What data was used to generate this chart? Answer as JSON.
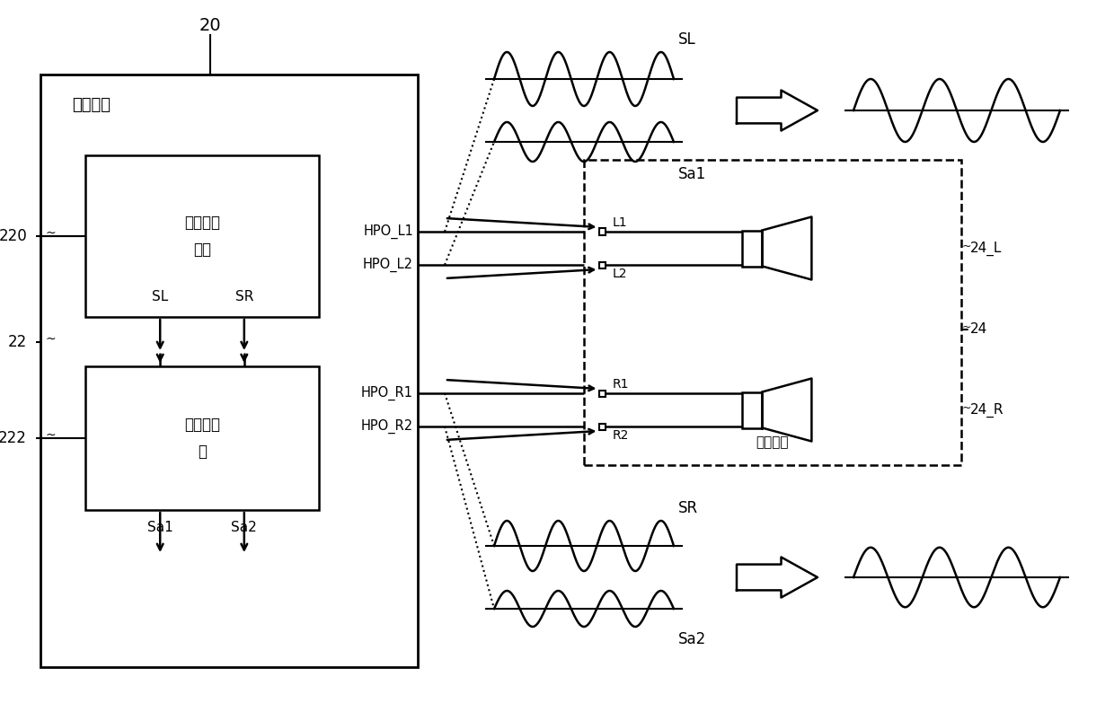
{
  "bg_color": "#ffffff",
  "line_color": "#000000",
  "fig_width": 12.4,
  "fig_height": 7.93,
  "label_20": "20",
  "label_jicheng": "集成电路",
  "label_yinpin1": "音频处理",
  "label_yinpin2": "电路",
  "label_xiangwei1": "相位调整",
  "label_xiangwei2": "器",
  "label_220": "220",
  "label_222": "222",
  "label_22": "22",
  "label_SL_box": "SL",
  "label_SR_box": "SR",
  "label_Sa1_box": "Sa1",
  "label_Sa2_box": "Sa2",
  "label_HPO_L1": "HPO_L1",
  "label_HPO_L2": "HPO_L2",
  "label_HPO_R1": "HPO_R1",
  "label_HPO_R2": "HPO_R2",
  "label_L1": "L1",
  "label_L2": "L2",
  "label_R1": "R1",
  "label_R2": "R2",
  "label_24_L": "24_L",
  "label_24_R": "24_R",
  "label_24": "24",
  "label_SL_wave": "SL",
  "label_Sa1_wave": "Sa1",
  "label_SR_wave": "SR",
  "label_Sa2_wave": "Sa2",
  "label_erji": "耳机单体"
}
